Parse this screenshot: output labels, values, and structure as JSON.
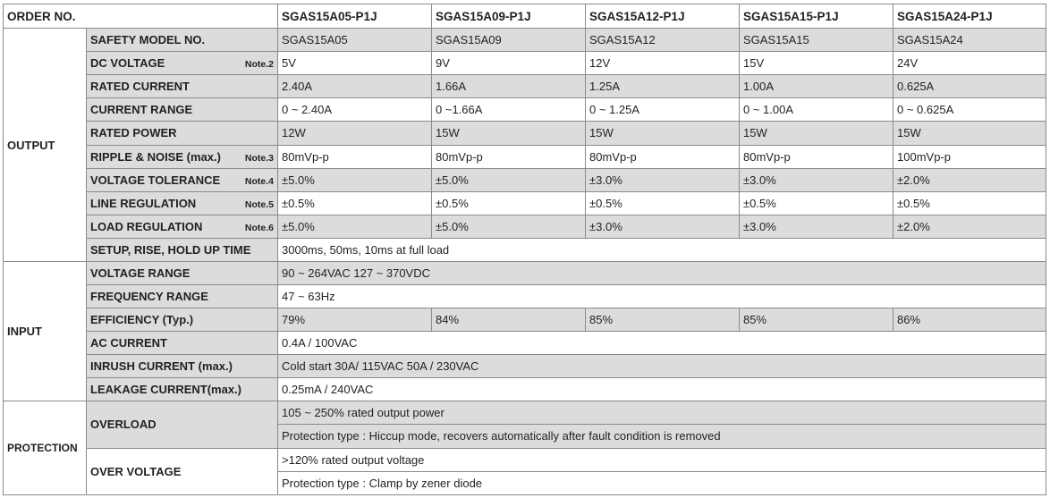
{
  "header": {
    "order_label": "ORDER NO.",
    "models": [
      "SGAS15A05-P1J",
      "SGAS15A09-P1J",
      "SGAS15A12-P1J",
      "SGAS15A15-P1J",
      "SGAS15A24-P1J"
    ]
  },
  "output": {
    "group_label": "OUTPUT",
    "rows": [
      {
        "label": "SAFETY MODEL NO.",
        "note": "",
        "values": [
          "SGAS15A05",
          "SGAS15A09",
          "SGAS15A12",
          "SGAS15A15",
          "SGAS15A24"
        ]
      },
      {
        "label": "DC VOLTAGE",
        "note": "Note.2",
        "values": [
          "5V",
          "9V",
          "12V",
          "15V",
          "24V"
        ]
      },
      {
        "label": "RATED CURRENT",
        "note": "",
        "values": [
          "2.40A",
          "1.66A",
          "1.25A",
          "1.00A",
          "0.625A"
        ]
      },
      {
        "label": "CURRENT RANGE",
        "note": "",
        "values": [
          "0 ~ 2.40A",
          "0 ~1.66A",
          "0 ~ 1.25A",
          "0 ~ 1.00A",
          "0 ~ 0.625A"
        ]
      },
      {
        "label": "RATED POWER",
        "note": "",
        "values": [
          "12W",
          "15W",
          "15W",
          "15W",
          "15W"
        ]
      },
      {
        "label": "RIPPLE & NOISE (max.)",
        "note": "Note.3",
        "values": [
          "80mVp-p",
          "80mVp-p",
          "80mVp-p",
          "80mVp-p",
          "100mVp-p"
        ]
      },
      {
        "label": "VOLTAGE TOLERANCE",
        "note": "Note.4",
        "values": [
          "±5.0%",
          "±5.0%",
          "±3.0%",
          "±3.0%",
          "±2.0%"
        ]
      },
      {
        "label": "LINE REGULATION",
        "note": "Note.5",
        "values": [
          "±0.5%",
          "±0.5%",
          "±0.5%",
          "±0.5%",
          "±0.5%"
        ]
      },
      {
        "label": "LOAD REGULATION",
        "note": "Note.6",
        "values": [
          "±5.0%",
          "±5.0%",
          "±3.0%",
          "±3.0%",
          "±2.0%"
        ]
      }
    ],
    "setup": {
      "label": "SETUP, RISE, HOLD UP TIME",
      "value": "3000ms, 50ms, 10ms  at full load"
    }
  },
  "input": {
    "group_label": "INPUT",
    "voltage_range": {
      "label": "VOLTAGE RANGE",
      "value": "90 ~ 264VAC    127 ~ 370VDC"
    },
    "frequency_range": {
      "label": "FREQUENCY RANGE",
      "value": "47 ~ 63Hz"
    },
    "efficiency": {
      "label": "EFFICIENCY (Typ.)",
      "values": [
        "79%",
        "84%",
        "85%",
        "85%",
        "86%"
      ]
    },
    "ac_current": {
      "label": "AC CURRENT",
      "value": "0.4A / 100VAC"
    },
    "inrush_current": {
      "label": "INRUSH CURRENT (max.)",
      "value": "Cold start 30A/ 115VAC    50A /  230VAC"
    },
    "leakage_current": {
      "label": "LEAKAGE CURRENT(max.)",
      "value": "0.25mA / 240VAC"
    }
  },
  "protection": {
    "group_label": "PROTECTION",
    "overload": {
      "label": "OVERLOAD",
      "line1": "105 ~ 250%  rated output power",
      "line2": "Protection type : Hiccup mode, recovers automatically after fault condition is removed"
    },
    "over_voltage": {
      "label": "OVER VOLTAGE",
      "line1": ">120% rated output voltage",
      "line2": "Protection type : Clamp by zener diode"
    }
  }
}
